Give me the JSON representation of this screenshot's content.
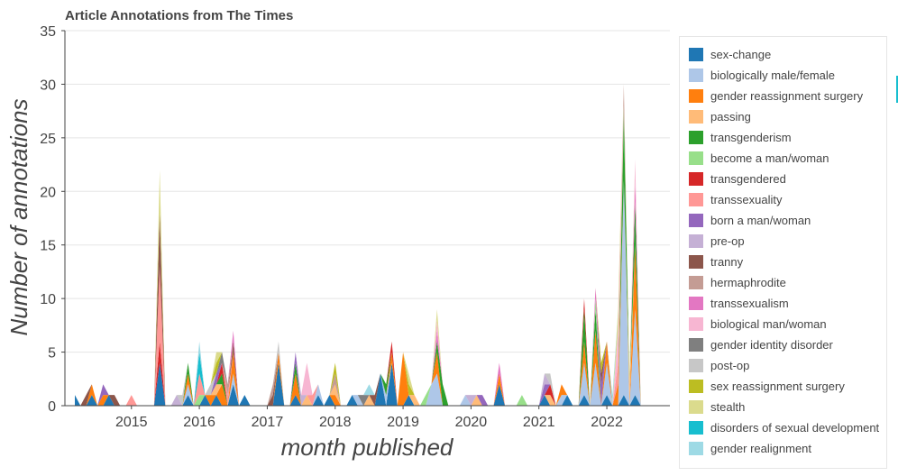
{
  "chart_data": {
    "type": "area",
    "title": "Article Annotations from The Times",
    "xlabel": "month published",
    "ylabel": "Number of annotations",
    "xlim": [
      "2014-03",
      "2022-08"
    ],
    "ylim": [
      0,
      35
    ],
    "yticks": [
      0,
      5,
      10,
      15,
      20,
      25,
      30,
      35
    ],
    "xticks": [
      "2015",
      "2016",
      "2017",
      "2018",
      "2019",
      "2020",
      "2021",
      "2022"
    ],
    "grid": "horizontal",
    "legend_position": "right",
    "series": [
      {
        "name": "sex-change",
        "color": "#1f77b4",
        "points": [
          [
            "2014-03",
            1
          ],
          [
            "2014-06",
            1
          ],
          [
            "2014-09",
            1
          ],
          [
            "2015-06",
            4
          ],
          [
            "2015-11",
            1
          ],
          [
            "2016-02",
            1
          ],
          [
            "2016-04",
            1
          ],
          [
            "2016-07",
            2
          ],
          [
            "2016-09",
            1
          ],
          [
            "2017-03",
            4
          ],
          [
            "2017-06",
            1
          ],
          [
            "2017-10",
            1
          ],
          [
            "2017-12",
            1
          ],
          [
            "2018-04",
            1
          ],
          [
            "2018-09",
            3
          ],
          [
            "2018-11",
            4
          ],
          [
            "2019-02",
            1
          ],
          [
            "2020-06",
            2
          ],
          [
            "2021-02",
            1
          ],
          [
            "2021-06",
            1
          ],
          [
            "2021-09",
            1
          ],
          [
            "2022-01",
            1
          ],
          [
            "2022-04",
            1
          ],
          [
            "2022-06",
            1
          ]
        ]
      },
      {
        "name": "biologically male/female",
        "color": "#aec7e8",
        "points": [
          [
            "2015-11",
            1
          ],
          [
            "2016-07",
            1
          ],
          [
            "2017-10",
            1
          ],
          [
            "2018-05",
            1
          ],
          [
            "2018-10",
            1
          ],
          [
            "2019-06",
            2
          ],
          [
            "2019-07",
            3
          ],
          [
            "2019-12",
            1
          ],
          [
            "2021-05",
            1
          ],
          [
            "2021-09",
            3
          ],
          [
            "2021-11",
            4
          ],
          [
            "2022-01",
            3
          ],
          [
            "2022-04",
            20
          ],
          [
            "2022-06",
            8
          ]
        ]
      },
      {
        "name": "gender reassignment surgery",
        "color": "#ff7f0e",
        "points": [
          [
            "2014-06",
            1
          ],
          [
            "2014-08",
            1
          ],
          [
            "2015-11",
            1
          ],
          [
            "2016-03",
            1
          ],
          [
            "2016-05",
            2
          ],
          [
            "2016-07",
            2
          ],
          [
            "2017-03",
            1
          ],
          [
            "2017-06",
            2
          ],
          [
            "2018-01",
            1
          ],
          [
            "2018-11",
            1
          ],
          [
            "2019-01",
            5
          ],
          [
            "2019-07",
            2
          ],
          [
            "2020-06",
            1
          ],
          [
            "2021-05",
            1
          ],
          [
            "2021-09",
            2
          ],
          [
            "2021-11",
            3
          ],
          [
            "2022-01",
            2
          ],
          [
            "2022-03",
            2
          ],
          [
            "2022-06",
            6
          ]
        ]
      },
      {
        "name": "passing",
        "color": "#ffbb78",
        "points": [
          [
            "2016-04",
            1
          ],
          [
            "2017-08",
            1
          ],
          [
            "2018-01",
            1
          ],
          [
            "2018-07",
            1
          ],
          [
            "2019-03",
            1
          ],
          [
            "2020-02",
            1
          ],
          [
            "2021-03",
            1
          ],
          [
            "2022-05",
            2
          ]
        ]
      },
      {
        "name": "transgenderism",
        "color": "#2ca02c",
        "points": [
          [
            "2015-11",
            1
          ],
          [
            "2016-05",
            1
          ],
          [
            "2017-06",
            1
          ],
          [
            "2018-10",
            1
          ],
          [
            "2019-07",
            1
          ],
          [
            "2019-08",
            2
          ],
          [
            "2021-09",
            3
          ],
          [
            "2021-11",
            2
          ],
          [
            "2022-04",
            6
          ],
          [
            "2022-06",
            4
          ]
        ]
      },
      {
        "name": "become a man/woman",
        "color": "#98df8a",
        "points": [
          [
            "2016-01",
            1
          ],
          [
            "2019-05",
            1
          ],
          [
            "2020-10",
            1
          ],
          [
            "2021-11",
            1
          ],
          [
            "2022-04",
            1
          ]
        ]
      },
      {
        "name": "transgendered",
        "color": "#d62728",
        "points": [
          [
            "2015-06",
            2
          ],
          [
            "2016-05",
            1
          ],
          [
            "2018-11",
            1
          ],
          [
            "2021-03",
            1
          ],
          [
            "2021-09",
            1
          ]
        ]
      },
      {
        "name": "transsexuality",
        "color": "#ff9896",
        "points": [
          [
            "2015-01",
            1
          ],
          [
            "2015-06",
            7
          ],
          [
            "2016-01",
            2
          ],
          [
            "2016-06",
            1
          ],
          [
            "2017-09",
            1
          ],
          [
            "2022-03",
            2
          ]
        ]
      },
      {
        "name": "born a man/woman",
        "color": "#9467bd",
        "points": [
          [
            "2014-08",
            1
          ],
          [
            "2016-04",
            1
          ],
          [
            "2017-06",
            1
          ],
          [
            "2020-03",
            1
          ],
          [
            "2021-02",
            1
          ],
          [
            "2021-12",
            2
          ]
        ]
      },
      {
        "name": "pre-op",
        "color": "#c5b0d5",
        "points": [
          [
            "2015-09",
            1
          ],
          [
            "2017-07",
            1
          ],
          [
            "2020-01",
            1
          ],
          [
            "2021-02",
            1
          ]
        ]
      },
      {
        "name": "tranny",
        "color": "#8c564b",
        "points": [
          [
            "2014-05",
            1
          ],
          [
            "2014-10",
            1
          ],
          [
            "2015-06",
            5
          ],
          [
            "2016-07",
            1
          ],
          [
            "2017-02",
            1
          ],
          [
            "2018-08",
            1
          ],
          [
            "2021-12",
            1
          ]
        ]
      },
      {
        "name": "hermaphrodite",
        "color": "#c49c94",
        "points": [
          [
            "2016-06",
            1
          ],
          [
            "2017-02",
            1
          ],
          [
            "2018-01",
            1
          ],
          [
            "2022-04",
            2
          ]
        ]
      },
      {
        "name": "transsexualism",
        "color": "#e377c2",
        "points": [
          [
            "2016-07",
            1
          ],
          [
            "2019-07",
            1
          ],
          [
            "2020-06",
            1
          ],
          [
            "2021-11",
            1
          ],
          [
            "2022-06",
            2
          ]
        ]
      },
      {
        "name": "biological man/woman",
        "color": "#f7b6d2",
        "points": [
          [
            "2017-08",
            3
          ],
          [
            "2019-07",
            1
          ],
          [
            "2022-03",
            3
          ],
          [
            "2022-06",
            2
          ]
        ]
      },
      {
        "name": "gender identity disorder",
        "color": "#7f7f7f",
        "points": [
          [
            "2016-05",
            1
          ],
          [
            "2018-06",
            1
          ]
        ]
      },
      {
        "name": "post-op",
        "color": "#c7c7c7",
        "points": [
          [
            "2015-10",
            1
          ],
          [
            "2016-03",
            1
          ],
          [
            "2017-03",
            1
          ],
          [
            "2021-03",
            1
          ]
        ]
      },
      {
        "name": "sex reassignment surgery",
        "color": "#bcbd22",
        "points": [
          [
            "2016-04",
            1
          ],
          [
            "2018-01",
            1
          ],
          [
            "2019-02",
            1
          ],
          [
            "2021-12",
            1
          ]
        ]
      },
      {
        "name": "stealth",
        "color": "#dbdb8d",
        "points": [
          [
            "2015-06",
            4
          ],
          [
            "2016-04",
            1
          ],
          [
            "2019-02",
            1
          ],
          [
            "2019-07",
            1
          ],
          [
            "2022-03",
            2
          ],
          [
            "2022-05",
            1
          ]
        ]
      },
      {
        "name": "disorders of sexual development",
        "color": "#17becf",
        "points": [
          [
            "2016-01",
            2
          ]
        ]
      },
      {
        "name": "gender realignment",
        "color": "#9edae5",
        "points": [
          [
            "2016-01",
            1
          ],
          [
            "2018-07",
            1
          ],
          [
            "2022-02",
            1
          ]
        ]
      }
    ]
  }
}
